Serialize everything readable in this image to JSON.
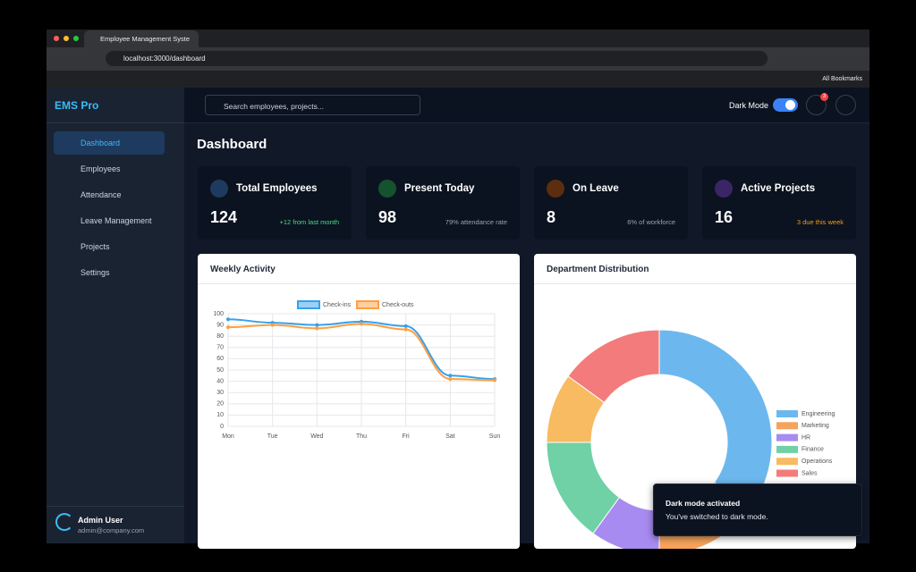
{
  "browser": {
    "tab_title": "Employee Management Syste",
    "url": "localhost:3000/dashboard",
    "bookmarks": "All Bookmarks"
  },
  "sidebar": {
    "logo": "EMS Pro",
    "menu": [
      "Dashboard",
      "Employees",
      "Attendance",
      "Leave Management",
      "Projects",
      "Settings"
    ],
    "user": {
      "name": "Admin User",
      "email": "admin@company.com"
    }
  },
  "header": {
    "search_placeholder": "Search employees, projects...",
    "dark_mode_label": "Dark Mode",
    "notification_count": "3"
  },
  "page_title": "Dashboard",
  "stats": [
    {
      "label": "Total Employees",
      "value": "124",
      "note": "+12 from last month"
    },
    {
      "label": "Present Today",
      "value": "98",
      "note": "79% attendance rate"
    },
    {
      "label": "On Leave",
      "value": "8",
      "note": "6% of workforce"
    },
    {
      "label": "Active Projects",
      "value": "16",
      "note": "3 due this week"
    }
  ],
  "chart_data": [
    {
      "type": "line",
      "title": "Weekly Activity",
      "categories": [
        "Mon",
        "Tue",
        "Wed",
        "Thu",
        "Fri",
        "Sat",
        "Sun"
      ],
      "series": [
        {
          "name": "Check-ins",
          "color": "#36a2eb",
          "values": [
            95,
            92,
            90,
            93,
            89,
            45,
            42
          ]
        },
        {
          "name": "Check-outs",
          "color": "#ff9f40",
          "values": [
            88,
            90,
            87,
            91,
            86,
            42,
            41
          ]
        }
      ],
      "ylim": [
        0,
        100
      ],
      "yticks": [
        0,
        10,
        20,
        30,
        40,
        50,
        60,
        70,
        80,
        90,
        100
      ],
      "grid": true,
      "legend": "top"
    },
    {
      "type": "doughnut",
      "title": "Department Distribution",
      "categories": [
        "Engineering",
        "Marketing",
        "HR",
        "Finance",
        "Operations",
        "Sales"
      ],
      "values": [
        35,
        15,
        10,
        15,
        10,
        15
      ],
      "colors": [
        "#6cb8ee",
        "#f6a35b",
        "#a78bf0",
        "#6fd1a5",
        "#f8bb62",
        "#f47b7b"
      ],
      "legend": "right"
    }
  ],
  "toast": {
    "title": "Dark mode activated",
    "message": "You've switched to dark mode."
  }
}
